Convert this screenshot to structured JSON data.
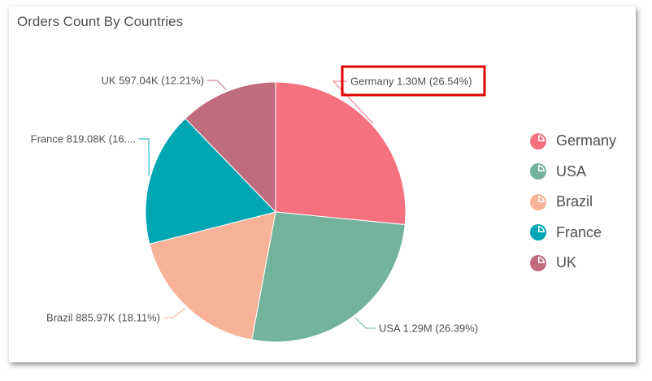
{
  "chart_data": {
    "type": "pie",
    "title": "Orders Count By Countries",
    "slices": [
      {
        "label": "Germany",
        "value": 1.3,
        "percent": 26.54,
        "color": "#f6717f",
        "data_label": "Germany 1.30M (26.54%)",
        "highlighted": true
      },
      {
        "label": "USA",
        "value": 1.29,
        "percent": 26.39,
        "color": "#73b39b",
        "data_label": "USA 1.29M (26.39%)"
      },
      {
        "label": "Brazil",
        "value": 0.88597,
        "percent": 18.11,
        "color": "#f7b297",
        "data_label": "Brazil 885.97K (18.11%)"
      },
      {
        "label": "France",
        "value": 0.81908,
        "percent": 16.75,
        "color": "#00a6b2",
        "data_label": "France 819.08K (16...."
      },
      {
        "label": "UK",
        "value": 0.59704,
        "percent": 12.21,
        "color": "#c16b7f",
        "data_label": "UK 597.04K (12.21%)"
      }
    ],
    "value_unit": "M",
    "legend": "right",
    "highlight_color": "#e00000"
  }
}
